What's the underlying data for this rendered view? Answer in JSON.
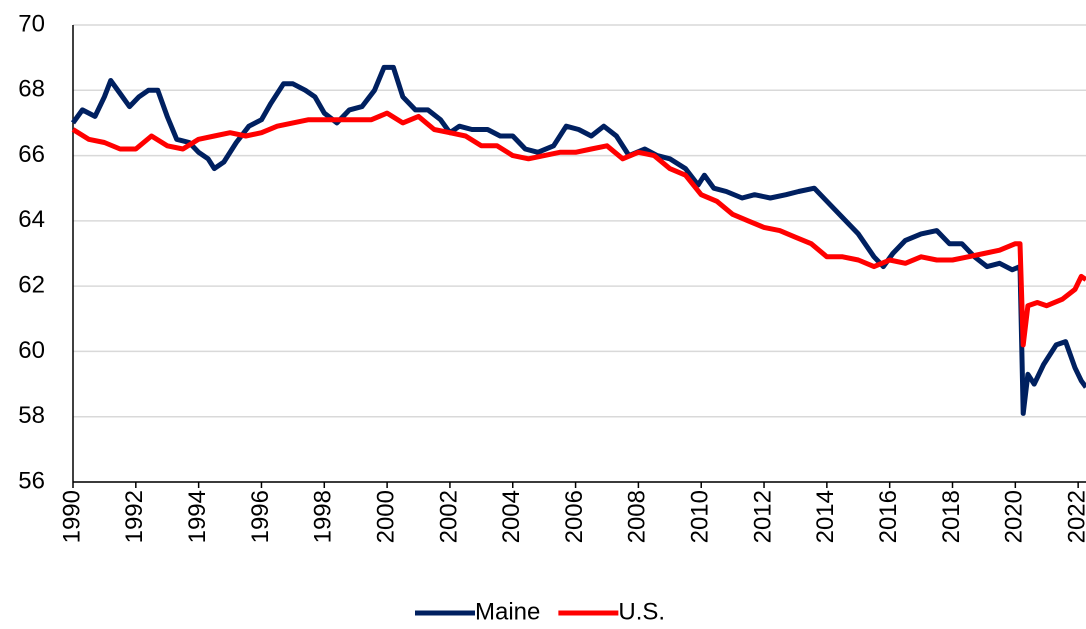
{
  "chart_data": {
    "type": "line",
    "xlim": [
      1990,
      2022.25
    ],
    "xticks": [
      1990,
      1992,
      1994,
      1996,
      1998,
      2000,
      2002,
      2004,
      2006,
      2008,
      2010,
      2012,
      2014,
      2016,
      2018,
      2020,
      2022
    ],
    "ylim": [
      56,
      70
    ],
    "yticks": [
      56,
      58,
      60,
      62,
      64,
      66,
      68,
      70
    ],
    "grid": true,
    "series": [
      {
        "name": "Maine",
        "color": "#002060",
        "x": [
          1990,
          1990.3,
          1990.7,
          1991.0,
          1991.2,
          1991.5,
          1991.8,
          1992.1,
          1992.4,
          1992.7,
          1993.0,
          1993.3,
          1993.7,
          1994.0,
          1994.3,
          1994.5,
          1994.8,
          1995.2,
          1995.6,
          1996.0,
          1996.3,
          1996.7,
          1997.0,
          1997.4,
          1997.7,
          1998.0,
          1998.4,
          1998.8,
          1999.2,
          1999.6,
          1999.9,
          2000.2,
          2000.5,
          2000.9,
          2001.3,
          2001.7,
          2002.0,
          2002.3,
          2002.7,
          2003.2,
          2003.6,
          2004.0,
          2004.4,
          2004.8,
          2005.3,
          2005.7,
          2006.1,
          2006.5,
          2006.9,
          2007.3,
          2007.7,
          2008.2,
          2008.6,
          2009.0,
          2009.5,
          2009.9,
          2010.1,
          2010.4,
          2010.8,
          2011.3,
          2011.7,
          2012.2,
          2012.7,
          2013.1,
          2013.6,
          2014.0,
          2014.5,
          2015.0,
          2015.5,
          2015.8,
          2016.1,
          2016.5,
          2017.0,
          2017.5,
          2017.9,
          2018.3,
          2018.7,
          2019.1,
          2019.5,
          2019.9,
          2020.15,
          2020.25,
          2020.4,
          2020.6,
          2020.9,
          2021.3,
          2021.6,
          2021.9,
          2022.1,
          2022.25
        ],
        "values": [
          67.0,
          67.4,
          67.2,
          67.8,
          68.3,
          67.9,
          67.5,
          67.8,
          68.0,
          68.0,
          67.2,
          66.5,
          66.4,
          66.1,
          65.9,
          65.6,
          65.8,
          66.4,
          66.9,
          67.1,
          67.6,
          68.2,
          68.2,
          68.0,
          67.8,
          67.3,
          67.0,
          67.4,
          67.5,
          68.0,
          68.7,
          68.7,
          67.8,
          67.4,
          67.4,
          67.1,
          66.7,
          66.9,
          66.8,
          66.8,
          66.6,
          66.6,
          66.2,
          66.1,
          66.3,
          66.9,
          66.8,
          66.6,
          66.9,
          66.6,
          66.0,
          66.2,
          66.0,
          65.9,
          65.6,
          65.1,
          65.4,
          65.0,
          64.9,
          64.7,
          64.8,
          64.7,
          64.8,
          64.9,
          65.0,
          64.6,
          64.1,
          63.6,
          62.9,
          62.6,
          63.0,
          63.4,
          63.6,
          63.7,
          63.3,
          63.3,
          62.9,
          62.6,
          62.7,
          62.5,
          62.6,
          58.1,
          59.3,
          59.0,
          59.6,
          60.2,
          60.3,
          59.5,
          59.1,
          58.9
        ]
      },
      {
        "name": "U.S.",
        "color": "#ff0000",
        "x": [
          1990,
          1990.5,
          1991.0,
          1991.5,
          1992.0,
          1992.5,
          1993.0,
          1993.5,
          1994.0,
          1994.5,
          1995.0,
          1995.5,
          1996.0,
          1996.5,
          1997.0,
          1997.5,
          1998.0,
          1998.5,
          1999.0,
          1999.5,
          2000.0,
          2000.5,
          2001.0,
          2001.5,
          2002.0,
          2002.5,
          2003.0,
          2003.5,
          2004.0,
          2004.5,
          2005.0,
          2005.5,
          2006.0,
          2006.5,
          2007.0,
          2007.5,
          2008.0,
          2008.5,
          2009.0,
          2009.5,
          2010.0,
          2010.5,
          2011.0,
          2011.5,
          2012.0,
          2012.5,
          2013.0,
          2013.5,
          2014.0,
          2014.5,
          2015.0,
          2015.5,
          2016.0,
          2016.5,
          2017.0,
          2017.5,
          2018.0,
          2018.5,
          2019.0,
          2019.5,
          2020.0,
          2020.15,
          2020.25,
          2020.4,
          2020.7,
          2021.0,
          2021.5,
          2021.9,
          2022.1,
          2022.25
        ],
        "values": [
          66.8,
          66.5,
          66.4,
          66.2,
          66.2,
          66.6,
          66.3,
          66.2,
          66.5,
          66.6,
          66.7,
          66.6,
          66.7,
          66.9,
          67.0,
          67.1,
          67.1,
          67.1,
          67.1,
          67.1,
          67.3,
          67.0,
          67.2,
          66.8,
          66.7,
          66.6,
          66.3,
          66.3,
          66.0,
          65.9,
          66.0,
          66.1,
          66.1,
          66.2,
          66.3,
          65.9,
          66.1,
          66.0,
          65.6,
          65.4,
          64.8,
          64.6,
          64.2,
          64.0,
          63.8,
          63.7,
          63.5,
          63.3,
          62.9,
          62.9,
          62.8,
          62.6,
          62.8,
          62.7,
          62.9,
          62.8,
          62.8,
          62.9,
          63.0,
          63.1,
          63.3,
          63.3,
          60.2,
          61.4,
          61.5,
          61.4,
          61.6,
          61.9,
          62.3,
          62.2
        ]
      }
    ]
  }
}
